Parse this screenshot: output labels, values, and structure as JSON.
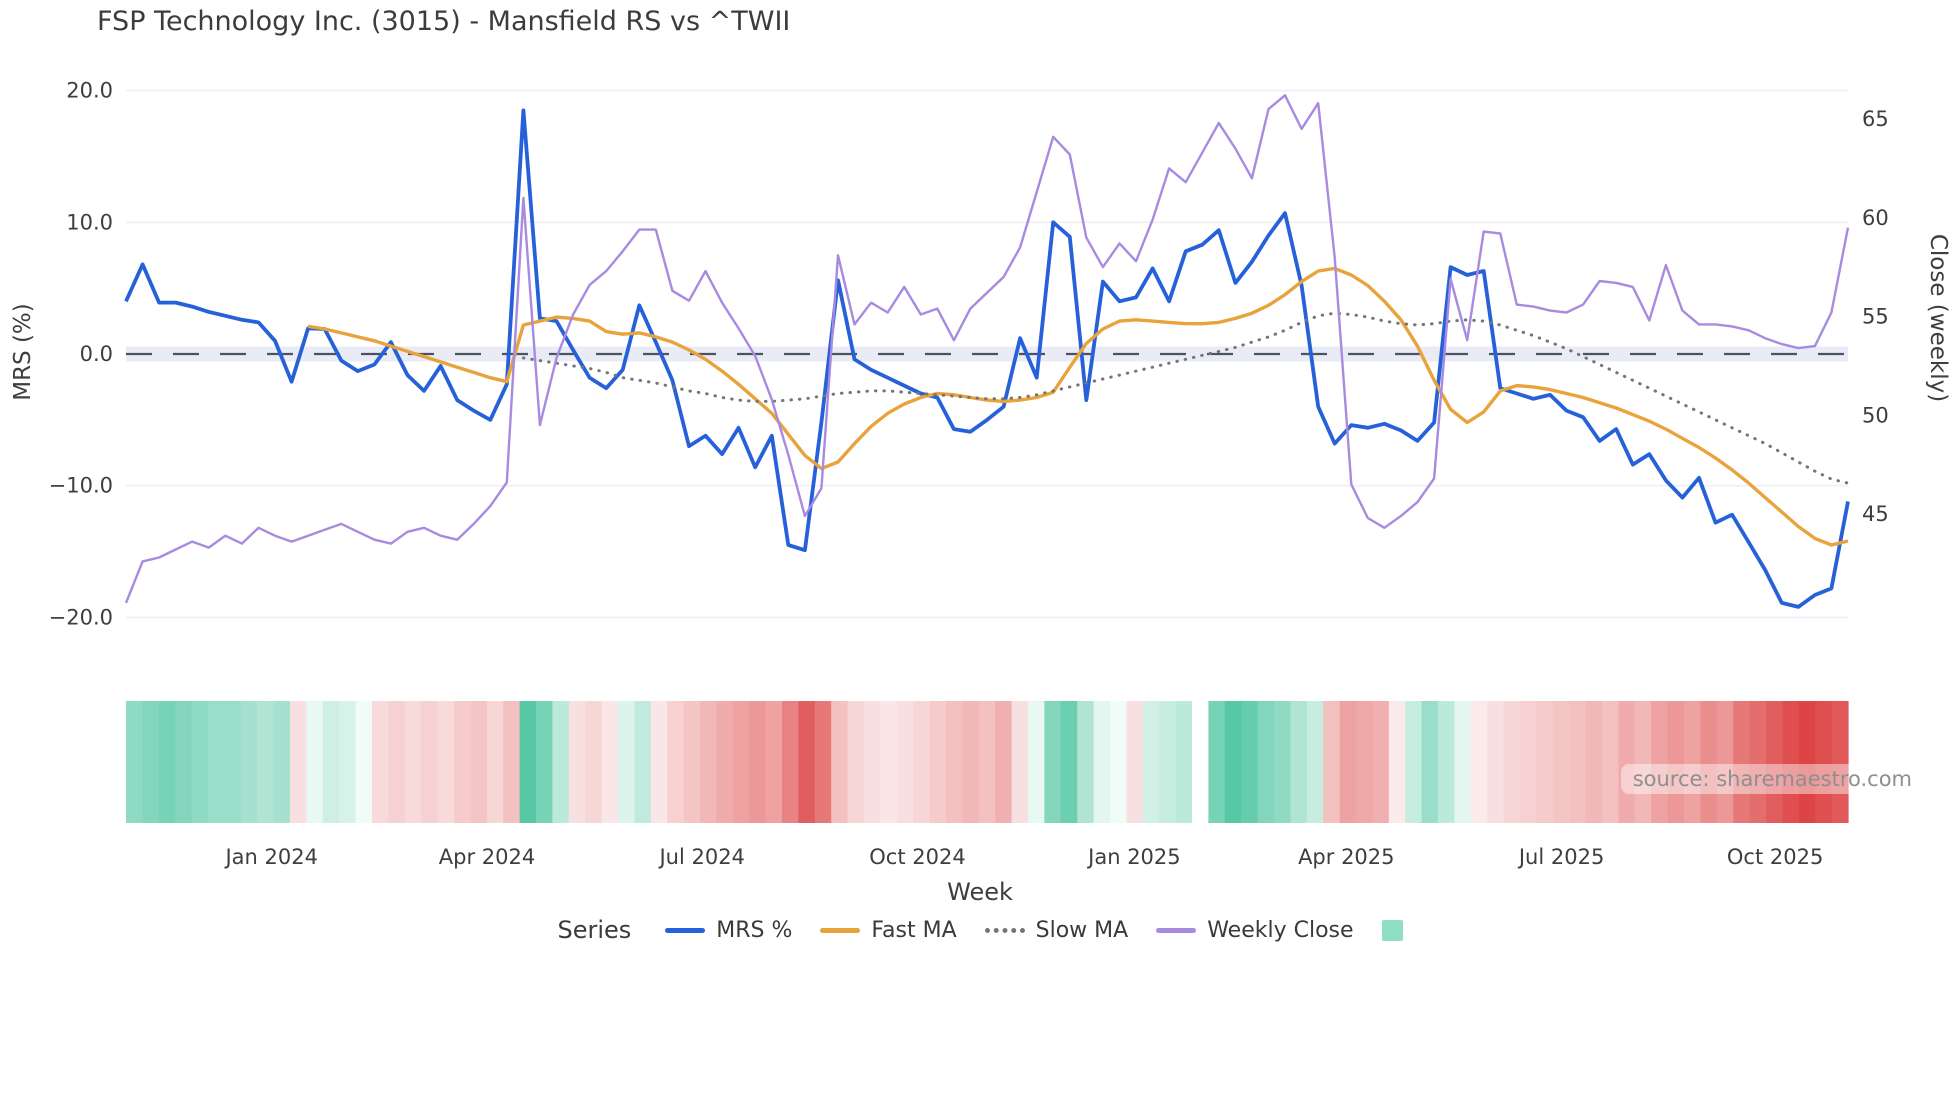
{
  "title": "FSP Technology Inc. (3015) - Mansfield RS vs ^TWII",
  "watermark": "source: sharemaestro.com",
  "legend": {
    "title": "Series",
    "items": [
      {
        "label": "MRS %",
        "swatch": "line",
        "color": "#2761d9"
      },
      {
        "label": "Fast MA",
        "swatch": "line",
        "color": "#e8a33c"
      },
      {
        "label": "Slow MA",
        "swatch": "dotted",
        "color": "#757575"
      },
      {
        "label": "Weekly Close",
        "swatch": "line",
        "color": "#a88ae0"
      },
      {
        "label": "",
        "swatch": "square",
        "color": "#8fdfc2"
      }
    ]
  },
  "chart_data": {
    "type": "line",
    "title": "FSP Technology Inc. (3015) - Mansfield RS vs ^TWII",
    "xlabel": "Week",
    "n_weeks": 105,
    "grid": true,
    "left_axis": {
      "label": "MRS (%)",
      "ticks": [
        20,
        10,
        0,
        -10,
        -20
      ],
      "tick_labels": [
        "20.0",
        "10.0",
        "0.0",
        "−10.0",
        "−20.0"
      ],
      "range": [
        -20.2,
        20.1
      ]
    },
    "right_axis": {
      "label": "Close (weekly)",
      "ticks": [
        65,
        60,
        55,
        50,
        45
      ],
      "tick_labels": [
        "65",
        "60",
        "55",
        "50",
        "45"
      ],
      "range": [
        39.9,
        66.5
      ]
    },
    "x_ticks": [
      {
        "label": "Jan 2024",
        "week": 8.8
      },
      {
        "label": "Apr 2024",
        "week": 21.8
      },
      {
        "label": "Jul 2024",
        "week": 34.8
      },
      {
        "label": "Oct 2024",
        "week": 47.8
      },
      {
        "label": "Jan 2025",
        "week": 60.9
      },
      {
        "label": "Apr 2025",
        "week": 73.7
      },
      {
        "label": "Jul 2025",
        "week": 86.7
      },
      {
        "label": "Oct 2025",
        "week": 99.6
      }
    ],
    "zero_line": {
      "value": 0,
      "color": "#4d535c",
      "band_color": "#e9ecf7"
    },
    "series": [
      {
        "name": "MRS %",
        "axis": "left",
        "color": "#2761d9",
        "width": 3.8,
        "dash": null,
        "values": [
          4.0,
          6.8,
          3.9,
          3.9,
          3.6,
          3.2,
          2.9,
          2.6,
          2.4,
          1.0,
          -2.1,
          1.95,
          1.9,
          -0.5,
          -1.3,
          -0.8,
          0.9,
          -1.6,
          -2.8,
          -0.9,
          -3.5,
          -4.3,
          -5.0,
          -2.3,
          18.5,
          2.7,
          2.5,
          0.3,
          -1.8,
          -2.6,
          -1.2,
          3.7,
          0.9,
          -2.0,
          -7.0,
          -6.2,
          -7.6,
          -5.6,
          -8.6,
          -6.2,
          -14.5,
          -14.9,
          -5.2,
          5.6,
          -0.4,
          -1.2,
          -1.8,
          -2.4,
          -3.0,
          -3.3,
          -5.7,
          -5.9,
          -5.0,
          -4.0,
          1.2,
          -1.8,
          10.0,
          8.9,
          -3.5,
          5.5,
          4.0,
          4.3,
          6.5,
          4.0,
          7.8,
          8.3,
          9.4,
          5.4,
          7.0,
          9.0,
          10.7,
          5.2,
          -4.0,
          -6.8,
          -5.4,
          -5.6,
          -5.3,
          -5.8,
          -6.6,
          -5.2,
          6.6,
          6.0,
          6.3,
          -2.6,
          -3.0,
          -3.4,
          -3.1,
          -4.3,
          -4.8,
          -6.6,
          -5.7,
          -8.4,
          -7.6,
          -9.6,
          -10.9,
          -9.4,
          -12.8,
          -12.2,
          -14.3,
          -16.4,
          -18.9,
          -19.2,
          -18.3,
          -17.8,
          -11.2
        ]
      },
      {
        "name": "Fast MA",
        "axis": "left",
        "color": "#e8a33c",
        "width": 3.4,
        "dash": null,
        "values": [
          null,
          null,
          null,
          null,
          null,
          null,
          null,
          null,
          null,
          null,
          null,
          2.1,
          1.9,
          1.6,
          1.3,
          1.0,
          0.6,
          0.2,
          -0.2,
          -0.6,
          -1.0,
          -1.4,
          -1.8,
          -2.1,
          2.2,
          2.5,
          2.8,
          2.7,
          2.5,
          1.7,
          1.5,
          1.6,
          1.3,
          0.9,
          0.3,
          -0.4,
          -1.3,
          -2.3,
          -3.4,
          -4.5,
          -6.1,
          -7.7,
          -8.7,
          -8.2,
          -6.8,
          -5.5,
          -4.5,
          -3.8,
          -3.3,
          -3.0,
          -3.1,
          -3.3,
          -3.5,
          -3.6,
          -3.5,
          -3.3,
          -2.9,
          -1.0,
          0.8,
          1.9,
          2.5,
          2.6,
          2.5,
          2.4,
          2.3,
          2.3,
          2.4,
          2.7,
          3.1,
          3.7,
          4.5,
          5.5,
          6.3,
          6.5,
          6.0,
          5.2,
          4.0,
          2.6,
          0.6,
          -2.0,
          -4.2,
          -5.2,
          -4.4,
          -2.8,
          -2.4,
          -2.5,
          -2.7,
          -3.0,
          -3.3,
          -3.7,
          -4.1,
          -4.6,
          -5.1,
          -5.7,
          -6.4,
          -7.1,
          -7.9,
          -8.8,
          -9.8,
          -10.9,
          -12.0,
          -13.1,
          -14.0,
          -14.5,
          -14.2
        ]
      },
      {
        "name": "Slow MA",
        "axis": "left",
        "color": "#757575",
        "width": 3.0,
        "dash": "dotted",
        "values": [
          null,
          null,
          null,
          null,
          null,
          null,
          null,
          null,
          null,
          null,
          null,
          null,
          null,
          null,
          null,
          null,
          null,
          null,
          null,
          null,
          null,
          null,
          null,
          null,
          -0.3,
          -0.5,
          -0.7,
          -0.9,
          -1.1,
          -1.4,
          -1.8,
          -2.0,
          -2.2,
          -2.5,
          -2.8,
          -3.0,
          -3.3,
          -3.5,
          -3.6,
          -3.6,
          -3.5,
          -3.4,
          -3.2,
          -3.0,
          -2.9,
          -2.8,
          -2.8,
          -2.9,
          -3.0,
          -3.1,
          -3.2,
          -3.3,
          -3.4,
          -3.4,
          -3.3,
          -3.1,
          -2.8,
          -2.5,
          -2.2,
          -1.9,
          -1.6,
          -1.3,
          -1.0,
          -0.7,
          -0.4,
          -0.1,
          0.2,
          0.5,
          0.9,
          1.3,
          1.8,
          2.4,
          2.9,
          3.1,
          3.0,
          2.8,
          2.5,
          2.3,
          2.2,
          2.3,
          2.5,
          2.6,
          2.5,
          2.2,
          1.8,
          1.4,
          0.9,
          0.4,
          -0.2,
          -0.8,
          -1.4,
          -2.0,
          -2.6,
          -3.2,
          -3.8,
          -4.4,
          -5.0,
          -5.6,
          -6.2,
          -6.8,
          -7.5,
          -8.2,
          -8.9,
          -9.5,
          -9.8
        ]
      },
      {
        "name": "Weekly Close",
        "axis": "right",
        "color": "#a88ae0",
        "width": 2.4,
        "dash": null,
        "values": [
          40.5,
          42.6,
          42.8,
          43.2,
          43.6,
          43.3,
          43.9,
          43.5,
          44.3,
          43.9,
          43.6,
          43.9,
          44.2,
          44.5,
          44.1,
          43.7,
          43.5,
          44.1,
          44.3,
          43.9,
          43.7,
          44.5,
          45.4,
          46.6,
          61.0,
          49.5,
          52.9,
          55.1,
          56.6,
          57.3,
          58.3,
          59.4,
          59.4,
          56.3,
          55.8,
          57.3,
          55.7,
          54.4,
          53.0,
          50.8,
          48.0,
          44.9,
          46.3,
          58.1,
          54.6,
          55.7,
          55.2,
          56.5,
          55.1,
          55.4,
          53.8,
          55.4,
          56.2,
          57.0,
          58.5,
          61.3,
          64.1,
          63.2,
          59.0,
          57.5,
          58.7,
          57.8,
          59.9,
          62.5,
          61.8,
          63.3,
          64.8,
          63.5,
          62.0,
          65.5,
          66.2,
          64.5,
          65.8,
          58.0,
          46.5,
          44.8,
          44.3,
          44.9,
          45.6,
          46.8,
          56.9,
          53.8,
          59.3,
          59.2,
          55.6,
          55.5,
          55.3,
          55.2,
          55.6,
          56.8,
          56.7,
          56.5,
          54.8,
          57.6,
          55.3,
          54.6,
          54.6,
          54.5,
          54.3,
          53.9,
          53.6,
          53.4,
          53.5,
          55.2,
          59.5
        ]
      }
    ],
    "heatmap": {
      "name": "weekly-return-heatmap",
      "positive_color": "#1db584",
      "negative_color": "#d93030",
      "values": [
        0.5,
        0.55,
        0.6,
        0.55,
        0.5,
        0.45,
        0.45,
        0.4,
        0.35,
        0.4,
        -0.15,
        0.1,
        0.22,
        0.18,
        0.06,
        -0.18,
        -0.22,
        -0.18,
        -0.22,
        -0.18,
        -0.25,
        -0.28,
        -0.2,
        -0.3,
        0.75,
        0.6,
        0.3,
        -0.15,
        -0.2,
        -0.12,
        0.15,
        0.28,
        -0.12,
        -0.22,
        -0.28,
        -0.35,
        -0.4,
        -0.45,
        -0.5,
        -0.45,
        -0.6,
        -0.78,
        -0.65,
        -0.3,
        -0.2,
        -0.15,
        -0.12,
        -0.15,
        -0.2,
        -0.25,
        -0.3,
        -0.35,
        -0.3,
        -0.38,
        -0.15,
        0.1,
        0.55,
        0.65,
        0.35,
        0.12,
        0.06,
        -0.15,
        0.2,
        0.25,
        0.3,
        0.0,
        0.6,
        0.75,
        0.68,
        0.55,
        0.5,
        0.35,
        0.25,
        -0.3,
        -0.45,
        -0.42,
        -0.38,
        -0.1,
        0.25,
        0.45,
        0.3,
        0.12,
        -0.1,
        -0.15,
        -0.2,
        -0.22,
        -0.25,
        -0.28,
        -0.3,
        -0.35,
        -0.3,
        -0.4,
        -0.35,
        -0.45,
        -0.5,
        -0.45,
        -0.55,
        -0.5,
        -0.65,
        -0.7,
        -0.78,
        -0.85,
        -0.9,
        -0.85,
        -0.8
      ]
    },
    "style": {
      "grid_color": "#eef0f4",
      "tick_label_color": "#3e3e3e",
      "background": "#ffffff"
    }
  }
}
